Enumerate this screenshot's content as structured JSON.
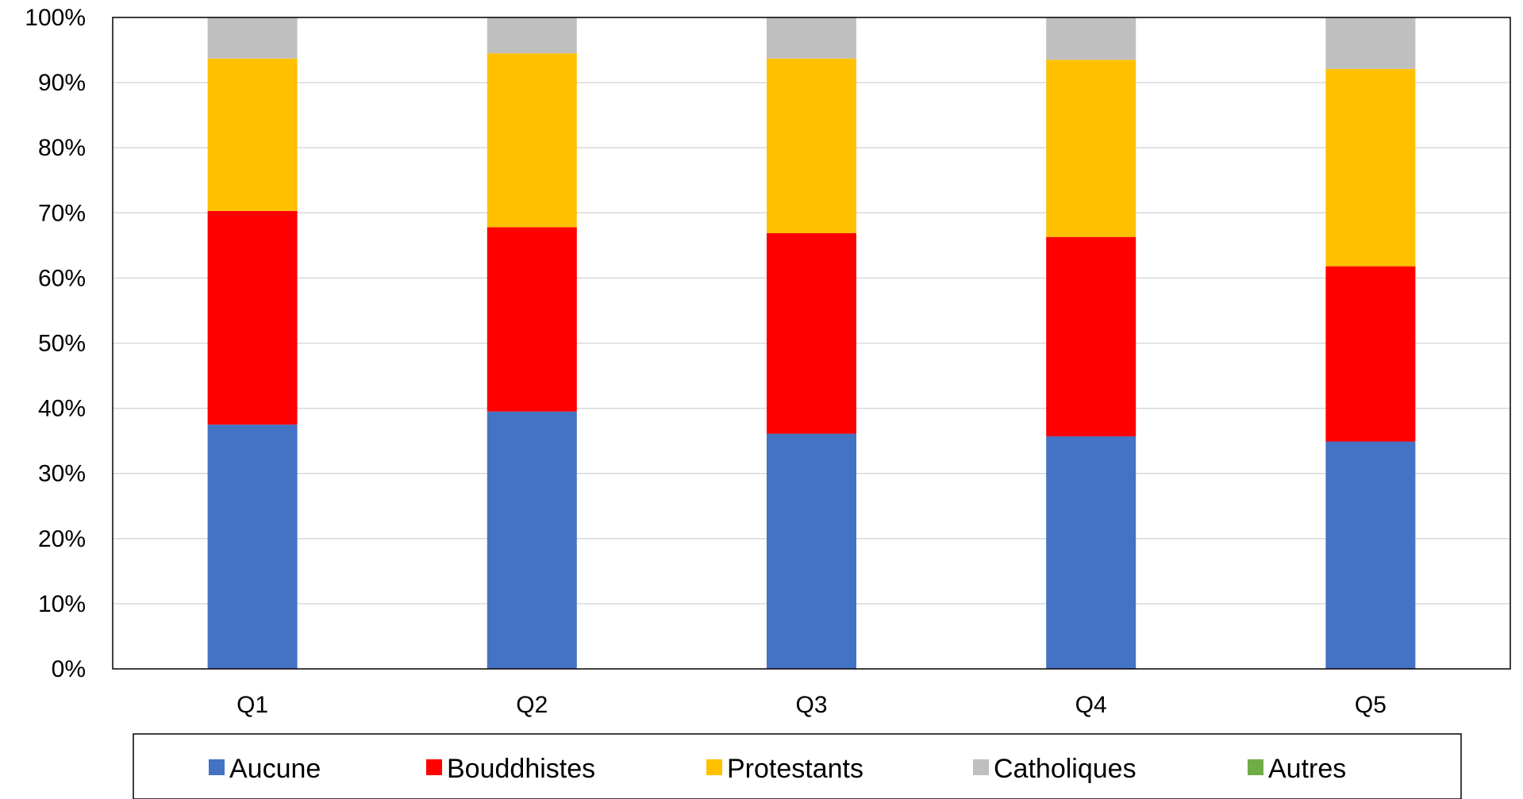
{
  "chart_data": {
    "type": "bar",
    "stacked": true,
    "title": "",
    "categories": [
      "Q1",
      "Q2",
      "Q3",
      "Q4",
      "Q5"
    ],
    "series": [
      {
        "name": "Aucune",
        "color": "#4472C4",
        "values": [
          37.5,
          39.5,
          36.1,
          35.7,
          34.9
        ]
      },
      {
        "name": "Bouddhistes",
        "color": "#FF0000",
        "values": [
          32.8,
          28.3,
          30.8,
          30.6,
          26.9
        ]
      },
      {
        "name": "Protestants",
        "color": "#FFC000",
        "values": [
          23.4,
          26.7,
          26.8,
          27.2,
          30.3
        ]
      },
      {
        "name": "Catholiques",
        "color": "#BFBFBF",
        "values": [
          6.3,
          5.5,
          6.3,
          6.5,
          7.9
        ]
      },
      {
        "name": "Autres",
        "color": "#70AD47",
        "values": [
          0,
          0,
          0,
          0,
          0
        ]
      }
    ],
    "ylim": [
      0,
      100
    ],
    "yticks": [
      "0%",
      "10%",
      "20%",
      "30%",
      "40%",
      "50%",
      "60%",
      "70%",
      "80%",
      "90%",
      "100%"
    ],
    "grid": true,
    "legend_position": "bottom",
    "xlabel": "",
    "ylabel": ""
  }
}
